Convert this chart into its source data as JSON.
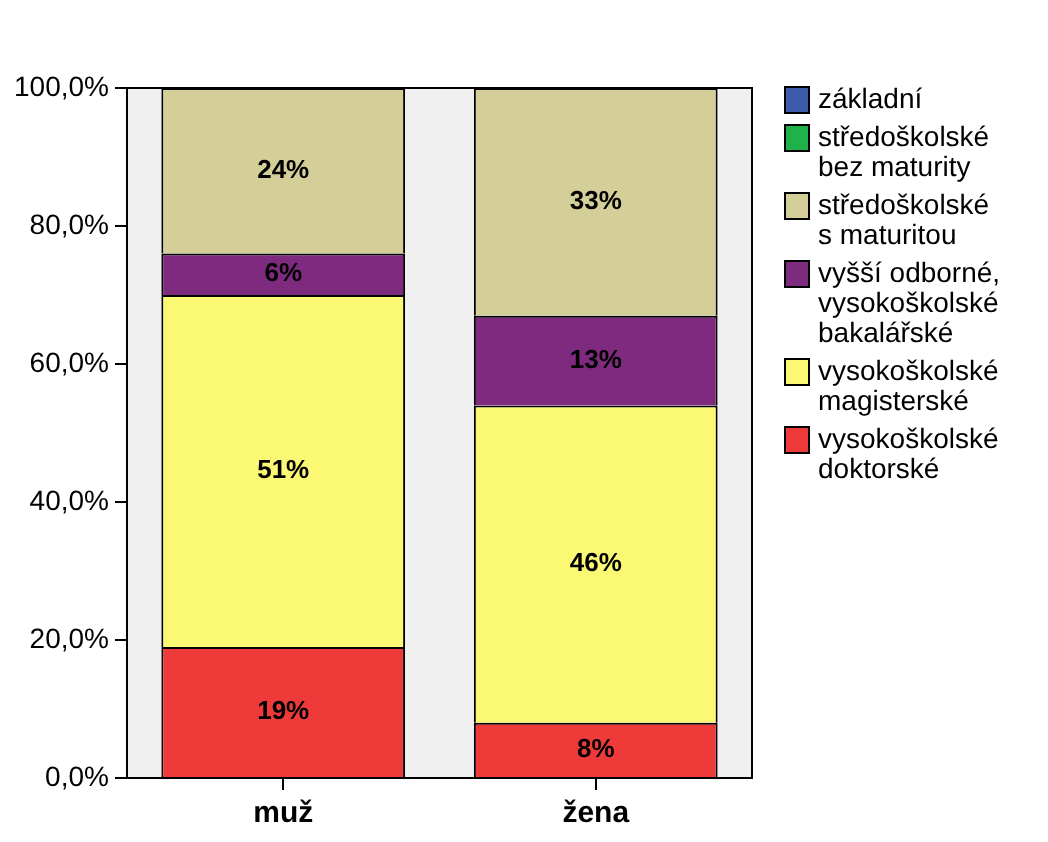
{
  "chart_data": {
    "type": "bar",
    "stacked": true,
    "categories": [
      "muž",
      "žena"
    ],
    "ylim": [
      0,
      100
    ],
    "yticks": [
      {
        "value": 0,
        "label": "0,0%"
      },
      {
        "value": 20,
        "label": "20,0%"
      },
      {
        "value": 40,
        "label": "40,0%"
      },
      {
        "value": 60,
        "label": "60,0%"
      },
      {
        "value": 80,
        "label": "80,0%"
      },
      {
        "value": 100,
        "label": "100,0%"
      }
    ],
    "grid": false,
    "legend": "right",
    "series": [
      {
        "name": "vysokoškolské doktorské",
        "color": "#ef3a3a",
        "values": [
          19,
          8
        ],
        "value_labels": [
          "19%",
          "8%"
        ]
      },
      {
        "name": "vysokoškolské magisterské",
        "color": "#fbf873",
        "values": [
          51,
          46
        ],
        "value_labels": [
          "51%",
          "46%"
        ]
      },
      {
        "name": "vyšší odborné, vysokoškolské bakalářské",
        "color": "#7e2a7e",
        "values": [
          6,
          13
        ],
        "value_labels": [
          "6%",
          "13%"
        ]
      },
      {
        "name": "středoškolské s maturitou",
        "color": "#d4ce98",
        "values": [
          24,
          33
        ],
        "value_labels": [
          "24%",
          "33%"
        ]
      },
      {
        "name": "středoškolské bez maturity",
        "color": "#1fb24a",
        "values": [
          0,
          0
        ],
        "value_labels": [
          null,
          null
        ]
      },
      {
        "name": "základní",
        "color": "#3e5ba9",
        "values": [
          0,
          0
        ],
        "value_labels": [
          null,
          null
        ]
      }
    ]
  }
}
